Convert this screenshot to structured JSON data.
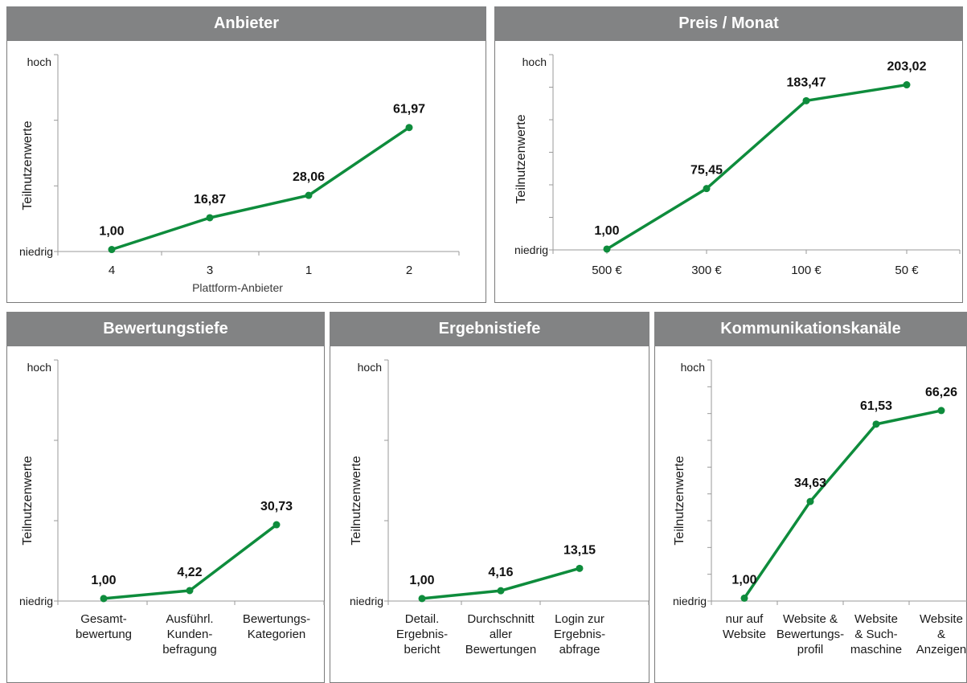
{
  "chart_data": [
    {
      "id": "anbieter",
      "type": "line",
      "title": "Anbieter",
      "ylabel": "Teilnutzenwerte",
      "xlabel": "Plattform-Anbieter",
      "ytick_top": "hoch",
      "ytick_bottom": "niedrig",
      "categories": [
        [
          "4"
        ],
        [
          "3"
        ],
        [
          "1"
        ],
        [
          "2"
        ]
      ],
      "values": [
        1.0,
        16.87,
        28.06,
        61.97
      ],
      "value_labels": [
        "1,00",
        "16,87",
        "28,06",
        "61,97"
      ],
      "ylim": [
        0,
        100
      ],
      "color": "#0e8c3c"
    },
    {
      "id": "preis",
      "type": "line",
      "title": "Preis / Monat",
      "ylabel": "Teilnutzenwerte",
      "xlabel": "",
      "ytick_top": "hoch",
      "ytick_bottom": "niedrig",
      "categories": [
        [
          "500 €"
        ],
        [
          "300 €"
        ],
        [
          "100 €"
        ],
        [
          "50 €"
        ]
      ],
      "values": [
        1.0,
        75.45,
        183.47,
        203.02
      ],
      "value_labels": [
        "1,00",
        "75,45",
        "183,47",
        "203,02"
      ],
      "ylim": [
        0,
        250
      ],
      "color": "#0e8c3c"
    },
    {
      "id": "bewertungstiefe",
      "type": "line",
      "title": "Bewertungstiefe",
      "ylabel": "Teilnutzenwerte",
      "xlabel": "",
      "ytick_top": "hoch",
      "ytick_bottom": "niedrig",
      "categories": [
        [
          "Gesamt-",
          "bewertung"
        ],
        [
          "Ausführl.",
          "Kunden-",
          "befragung"
        ],
        [
          "Bewertungs-",
          "Kategorien"
        ]
      ],
      "values": [
        1.0,
        4.22,
        30.73
      ],
      "value_labels": [
        "1,00",
        "4,22",
        "30,73"
      ],
      "ylim": [
        0,
        100
      ],
      "color": "#0e8c3c"
    },
    {
      "id": "ergebnistiefe",
      "type": "line",
      "title": "Ergebnistiefe",
      "ylabel": "Teilnutzenwerte",
      "xlabel": "",
      "ytick_top": "hoch",
      "ytick_bottom": "niedrig",
      "categories": [
        [
          "Detail.",
          "Ergebnis-",
          "bericht"
        ],
        [
          "Durchschnitt",
          "aller",
          "Bewertungen"
        ],
        [
          "Login zur",
          "Ergebnis-",
          "abfrage"
        ]
      ],
      "values": [
        1.0,
        4.16,
        13.15
      ],
      "value_labels": [
        "1,00",
        "4,16",
        "13,15"
      ],
      "ylim": [
        0,
        100
      ],
      "color": "#0e8c3c"
    },
    {
      "id": "kommunikation",
      "type": "line",
      "title": "Kommunikationskanäle",
      "ylabel": "Teilnutzenwerte",
      "xlabel": "",
      "ytick_top": "hoch",
      "ytick_bottom": "niedrig",
      "categories": [
        [
          "nur auf",
          "Website"
        ],
        [
          "Website &",
          "Bewertungs-",
          "profil"
        ],
        [
          "Website",
          "& Such-",
          "maschine"
        ],
        [
          "Website",
          "&",
          "Anzeigen"
        ]
      ],
      "values": [
        1.0,
        34.63,
        61.53,
        66.26
      ],
      "value_labels": [
        "1,00",
        "34,63",
        "61,53",
        "66,26"
      ],
      "ylim": [
        0,
        90
      ],
      "color": "#0e8c3c"
    }
  ]
}
